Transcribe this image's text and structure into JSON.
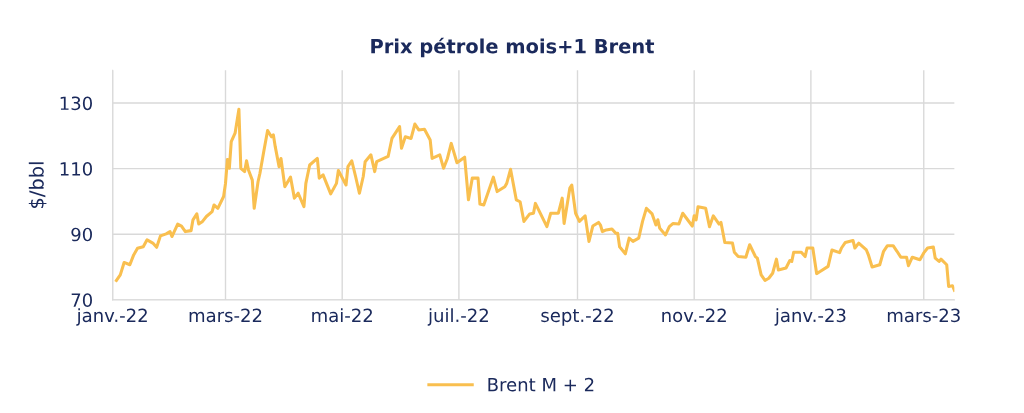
{
  "chart_data": {
    "type": "line",
    "title": "Prix pétrole mois+1 Brent",
    "ylabel": "$/bbl",
    "x": [
      "2022-01-03",
      "2022-01-05",
      "2022-01-07",
      "2022-01-10",
      "2022-01-12",
      "2022-01-14",
      "2022-01-17",
      "2022-01-19",
      "2022-01-22",
      "2022-01-24",
      "2022-01-26",
      "2022-01-29",
      "2022-01-31",
      "2022-02-01",
      "2022-02-04",
      "2022-02-06",
      "2022-02-08",
      "2022-02-11",
      "2022-02-12",
      "2022-02-14",
      "2022-02-15",
      "2022-02-17",
      "2022-02-19",
      "2022-02-22",
      "2022-02-23",
      "2022-02-25",
      "2022-02-28",
      "2022-03-01",
      "2022-03-02",
      "2022-03-03",
      "2022-03-04",
      "2022-03-06",
      "2022-03-08",
      "2022-03-09",
      "2022-03-11",
      "2022-03-12",
      "2022-03-13",
      "2022-03-15",
      "2022-03-16",
      "2022-03-18",
      "2022-03-19",
      "2022-03-21",
      "2022-03-23",
      "2022-03-25",
      "2022-03-26",
      "2022-03-27",
      "2022-03-29",
      "2022-03-30",
      "2022-04-01",
      "2022-04-04",
      "2022-04-06",
      "2022-04-08",
      "2022-04-11",
      "2022-04-12",
      "2022-04-14",
      "2022-04-18",
      "2022-04-19",
      "2022-04-21",
      "2022-04-25",
      "2022-04-28",
      "2022-04-29",
      "2022-05-03",
      "2022-05-04",
      "2022-05-06",
      "2022-05-08",
      "2022-05-10",
      "2022-05-12",
      "2022-05-13",
      "2022-05-16",
      "2022-05-18",
      "2022-05-19",
      "2022-05-25",
      "2022-05-27",
      "2022-05-31",
      "2022-06-01",
      "2022-06-03",
      "2022-06-06",
      "2022-06-08",
      "2022-06-10",
      "2022-06-13",
      "2022-06-16",
      "2022-06-17",
      "2022-06-21",
      "2022-06-23",
      "2022-06-25",
      "2022-06-27",
      "2022-06-30",
      "2022-07-04",
      "2022-07-06",
      "2022-07-08",
      "2022-07-11",
      "2022-07-12",
      "2022-07-14",
      "2022-07-19",
      "2022-07-21",
      "2022-07-25",
      "2022-07-26",
      "2022-07-28",
      "2022-07-31",
      "2022-08-02",
      "2022-08-04",
      "2022-08-07",
      "2022-08-09",
      "2022-08-10",
      "2022-08-16",
      "2022-08-18",
      "2022-08-22",
      "2022-08-24",
      "2022-08-25",
      "2022-08-28",
      "2022-08-29",
      "2022-08-31",
      "2022-09-02",
      "2022-09-05",
      "2022-09-07",
      "2022-09-09",
      "2022-09-12",
      "2022-09-13",
      "2022-09-14",
      "2022-09-16",
      "2022-09-19",
      "2022-09-21",
      "2022-09-22",
      "2022-09-23",
      "2022-09-26",
      "2022-09-28",
      "2022-09-30",
      "2022-10-03",
      "2022-10-05",
      "2022-10-07",
      "2022-10-10",
      "2022-10-12",
      "2022-10-13",
      "2022-10-14",
      "2022-10-17",
      "2022-10-19",
      "2022-10-21",
      "2022-10-24",
      "2022-10-26",
      "2022-10-31",
      "2022-11-01",
      "2022-11-02",
      "2022-11-03",
      "2022-11-07",
      "2022-11-09",
      "2022-11-11",
      "2022-11-14",
      "2022-11-15",
      "2022-11-17",
      "2022-11-21",
      "2022-11-22",
      "2022-11-24",
      "2022-11-28",
      "2022-11-30",
      "2022-12-03",
      "2022-12-04",
      "2022-12-06",
      "2022-12-08",
      "2022-12-10",
      "2022-12-12",
      "2022-12-14",
      "2022-12-15",
      "2022-12-19",
      "2022-12-21",
      "2022-12-22",
      "2022-12-23",
      "2022-12-27",
      "2022-12-29",
      "2022-12-30",
      "2023-01-02",
      "2023-01-04",
      "2023-01-06",
      "2023-01-10",
      "2023-01-12",
      "2023-01-16",
      "2023-01-17",
      "2023-01-19",
      "2023-01-23",
      "2023-01-24",
      "2023-01-26",
      "2023-01-30",
      "2023-01-31",
      "2023-02-02",
      "2023-02-06",
      "2023-02-08",
      "2023-02-10",
      "2023-02-13",
      "2023-02-15",
      "2023-02-17",
      "2023-02-20",
      "2023-02-21",
      "2023-02-23",
      "2023-02-27",
      "2023-03-01",
      "2023-03-03",
      "2023-03-06",
      "2023-03-07",
      "2023-03-09",
      "2023-03-10",
      "2023-03-13",
      "2023-03-14",
      "2023-03-16",
      "2023-03-17"
    ],
    "series": [
      {
        "name": "Brent M + 2",
        "color": "#f9bf4f",
        "values": [
          75.9,
          77.6,
          81.4,
          80.7,
          83.7,
          85.7,
          86.2,
          88.3,
          87.3,
          86.0,
          89.5,
          90.1,
          90.8,
          89.3,
          93.1,
          92.5,
          90.8,
          91.1,
          94.4,
          96.2,
          93.1,
          93.9,
          95.4,
          96.9,
          98.9,
          97.9,
          101.5,
          105.5,
          112.8,
          110.1,
          118.2,
          120.8,
          128.1,
          110.1,
          109.1,
          112.4,
          109.6,
          106.5,
          97.9,
          106.0,
          108.6,
          115.2,
          121.6,
          119.7,
          120.3,
          116.7,
          110.6,
          113.1,
          104.5,
          107.4,
          101.0,
          102.5,
          98.4,
          105.5,
          111.1,
          113.1,
          107.1,
          108.1,
          102.3,
          105.5,
          109.4,
          105.0,
          110.6,
          112.4,
          107.6,
          102.5,
          107.6,
          112.1,
          114.2,
          109.1,
          112.1,
          113.7,
          119.2,
          122.8,
          116.2,
          119.7,
          119.2,
          123.6,
          121.8,
          122.0,
          118.7,
          113.1,
          114.2,
          110.1,
          113.1,
          117.7,
          111.8,
          113.5,
          100.5,
          107.1,
          107.1,
          99.2,
          98.9,
          107.4,
          103.0,
          104.5,
          105.5,
          109.8,
          100.5,
          99.9,
          93.9,
          96.2,
          96.4,
          99.4,
          92.3,
          96.4,
          96.4,
          101.0,
          93.3,
          104.1,
          105.0,
          96.4,
          93.9,
          95.6,
          87.8,
          92.5,
          93.6,
          92.8,
          90.8,
          91.3,
          91.6,
          90.3,
          90.3,
          86.2,
          84.0,
          88.8,
          87.8,
          88.8,
          93.9,
          97.9,
          96.2,
          92.8,
          94.4,
          91.8,
          89.8,
          92.3,
          93.3,
          93.1,
          96.4,
          92.5,
          95.6,
          94.4,
          98.4,
          97.9,
          92.3,
          95.6,
          93.1,
          93.6,
          87.5,
          87.3,
          84.5,
          83.2,
          83.0,
          86.8,
          83.2,
          82.7,
          77.6,
          75.9,
          76.6,
          78.1,
          82.4,
          79.1,
          79.7,
          82.0,
          81.7,
          84.5,
          84.5,
          83.2,
          85.8,
          85.8,
          78.0,
          78.7,
          80.2,
          85.2,
          84.4,
          85.8,
          87.5,
          88.1,
          85.8,
          87.3,
          85.2,
          83.8,
          80.0,
          80.7,
          84.8,
          86.5,
          86.5,
          84.8,
          83.0,
          83.0,
          80.4,
          83.0,
          82.2,
          84.3,
          85.8,
          86.1,
          82.7,
          81.7,
          82.4,
          80.7,
          74.1,
          74.3,
          72.9
        ]
      }
    ],
    "xlim": [
      "2022-01-01",
      "2023-03-17"
    ],
    "xticks": [
      {
        "value": "2022-01-01",
        "label": "janv.-22"
      },
      {
        "value": "2022-03-01",
        "label": "mars-22"
      },
      {
        "value": "2022-05-01",
        "label": "mai-22"
      },
      {
        "value": "2022-07-01",
        "label": "juil.-22"
      },
      {
        "value": "2022-09-01",
        "label": "sept.-22"
      },
      {
        "value": "2022-11-01",
        "label": "nov.-22"
      },
      {
        "value": "2023-01-01",
        "label": "janv.-23"
      },
      {
        "value": "2023-03-01",
        "label": "mars-23"
      }
    ],
    "ylim": [
      70,
      140
    ],
    "yticks": [
      70,
      90,
      110,
      130
    ],
    "grid": true,
    "legend": "bottom",
    "marker": "none",
    "line_style": "solid"
  }
}
